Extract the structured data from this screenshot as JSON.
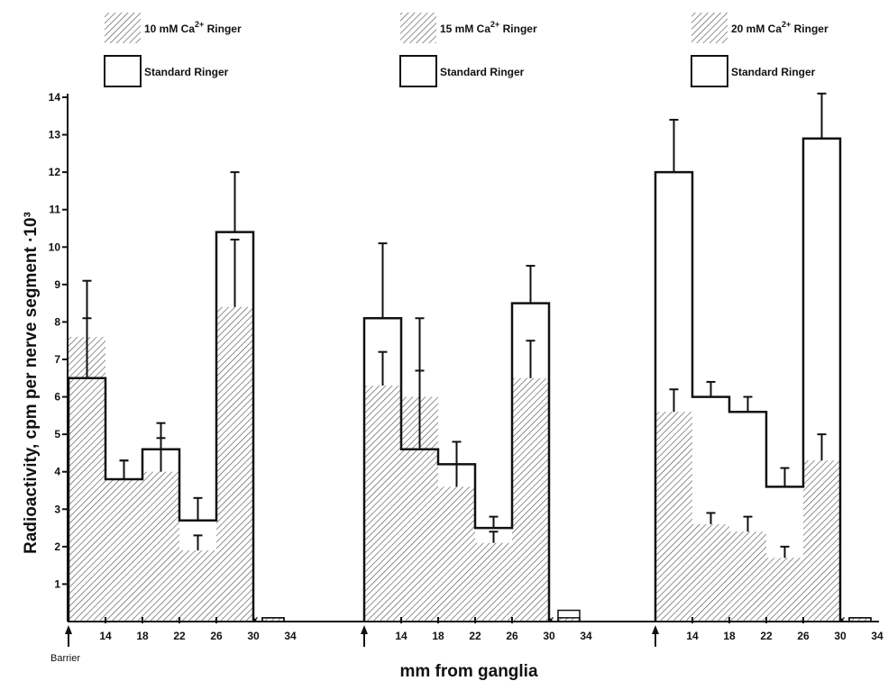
{
  "chart_data": {
    "type": "bar",
    "xlabel": "mm from ganglia",
    "ylabel": "Radioactivity, cpm per nerve segment ·10³",
    "ylim": [
      0,
      14
    ],
    "y_ticks": [
      "1",
      "2",
      "3",
      "4",
      "5",
      "6",
      "7",
      "8",
      "9",
      "10",
      "11",
      "12",
      "13",
      "14"
    ],
    "barrier_label": "Barrier",
    "cross_mark": "×",
    "panels": [
      {
        "x_ticks": [
          "14",
          "18",
          "22",
          "26",
          "30",
          "34"
        ],
        "legend": [
          {
            "kind": "hatched",
            "label_main": "10 mM Ca",
            "label_sup": "2+",
            "label_end": " Ringer"
          },
          {
            "kind": "open",
            "label": "Standard Ringer"
          }
        ],
        "series": [
          {
            "name": "10 mM Ca²⁺ Ringer",
            "style": "hatched",
            "values": [
              7.6,
              3.8,
              4.0,
              1.9,
              8.4,
              0.1
            ],
            "errors": [
              1.5,
              0.5,
              0.9,
              0.4,
              1.8,
              null
            ]
          },
          {
            "name": "Standard Ringer",
            "style": "open",
            "values": [
              6.5,
              3.8,
              4.6,
              2.7,
              10.4,
              0.1
            ],
            "errors": [
              1.6,
              0.5,
              0.7,
              0.6,
              1.6,
              null
            ]
          }
        ]
      },
      {
        "x_ticks": [
          "14",
          "18",
          "22",
          "26",
          "30",
          "34"
        ],
        "legend": [
          {
            "kind": "hatched",
            "label_main": "15 mM Ca",
            "label_sup": "2+",
            "label_end": " Ringer"
          },
          {
            "kind": "open",
            "label": "Standard Ringer"
          }
        ],
        "series": [
          {
            "name": "15 mM Ca²⁺ Ringer",
            "style": "hatched",
            "values": [
              6.3,
              6.0,
              3.6,
              2.1,
              6.5,
              0.1
            ],
            "errors": [
              0.9,
              0.7,
              0.6,
              0.3,
              1.0,
              null
            ]
          },
          {
            "name": "Standard Ringer",
            "style": "open",
            "values": [
              8.1,
              4.6,
              4.2,
              2.5,
              8.5,
              0.3
            ],
            "errors": [
              2.0,
              3.5,
              0.6,
              0.3,
              1.0,
              null
            ]
          }
        ]
      },
      {
        "x_ticks": [
          "14",
          "18",
          "22",
          "26",
          "30",
          "34"
        ],
        "legend": [
          {
            "kind": "hatched",
            "label_main": "20 mM Ca",
            "label_sup": "2+",
            "label_end": " Ringer"
          },
          {
            "kind": "open",
            "label": "Standard Ringer"
          }
        ],
        "series": [
          {
            "name": "20 mM Ca²⁺ Ringer",
            "style": "hatched",
            "values": [
              5.6,
              2.6,
              2.4,
              1.7,
              4.3,
              0.1
            ],
            "errors": [
              0.6,
              0.3,
              0.4,
              0.3,
              0.7,
              null
            ]
          },
          {
            "name": "Standard Ringer",
            "style": "open",
            "values": [
              12.0,
              6.0,
              5.6,
              3.6,
              12.9,
              0.1
            ],
            "errors": [
              1.4,
              0.4,
              0.4,
              0.5,
              1.2,
              null
            ]
          }
        ]
      }
    ]
  },
  "colors": {
    "ink": "#111111",
    "hatch": "#555555",
    "background": "#ffffff"
  }
}
